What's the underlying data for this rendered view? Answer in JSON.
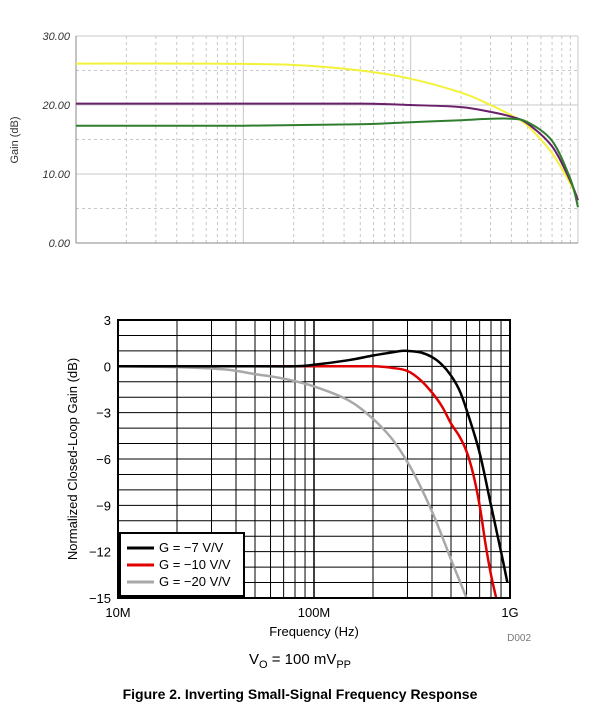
{
  "chart_data": [
    {
      "type": "line",
      "ylabel": "Gain (dB)",
      "xscale": "log",
      "xlim": [
        1000000,
        1000000000
      ],
      "ylim": [
        0,
        30
      ],
      "yticks": [
        "0.00",
        "10.00",
        "20.00",
        "30.00"
      ],
      "grid": true,
      "series": [
        {
          "color": "#f2f23a",
          "points": [
            [
              1000000,
              26
            ],
            [
              5000000,
              26
            ],
            [
              20000000,
              25.8
            ],
            [
              50000000,
              25
            ],
            [
              100000000,
              23.8
            ],
            [
              200000000,
              21.8
            ],
            [
              300000000,
              20
            ],
            [
              400000000,
              18.5
            ],
            [
              500000000,
              17
            ],
            [
              700000000,
              13
            ],
            [
              900000000,
              8.6
            ],
            [
              1000000000,
              6.3
            ]
          ]
        },
        {
          "color": "#6a1f6a",
          "points": [
            [
              1000000,
              20.2
            ],
            [
              10000000,
              20.2
            ],
            [
              50000000,
              20.2
            ],
            [
              100000000,
              20
            ],
            [
              200000000,
              19.7
            ],
            [
              300000000,
              19
            ],
            [
              400000000,
              18.3
            ],
            [
              500000000,
              17.3
            ],
            [
              700000000,
              14
            ],
            [
              900000000,
              9
            ],
            [
              1000000000,
              6.2
            ]
          ]
        },
        {
          "color": "#2f7d2f",
          "points": [
            [
              1000000,
              17
            ],
            [
              10000000,
              17
            ],
            [
              50000000,
              17.2
            ],
            [
              100000000,
              17.5
            ],
            [
              200000000,
              17.8
            ],
            [
              300000000,
              18
            ],
            [
              400000000,
              18
            ],
            [
              500000000,
              17.5
            ],
            [
              700000000,
              14.8
            ],
            [
              900000000,
              9.3
            ],
            [
              1000000000,
              5.2
            ]
          ]
        }
      ]
    },
    {
      "type": "line",
      "xlabel": "Frequency (Hz)",
      "ylabel": "Normalized Closed-Loop Gain (dB)",
      "xscale": "log",
      "xlim": [
        10000000,
        1000000000
      ],
      "ylim": [
        -15,
        3
      ],
      "yticks": [
        "3",
        "0",
        "-3",
        "-6",
        "-9",
        "-12",
        "-15"
      ],
      "xticks": [
        {
          "v": 10000000,
          "label": "10M"
        },
        {
          "v": 100000000,
          "label": "100M"
        },
        {
          "v": 1000000000,
          "label": "1G"
        }
      ],
      "grid": true,
      "legend_position": "bottom-left",
      "series": [
        {
          "name": "G = −7 V/V",
          "color": "#000000",
          "points": [
            [
              10000000,
              0
            ],
            [
              50000000,
              0
            ],
            [
              80000000,
              0
            ],
            [
              100000000,
              0.1
            ],
            [
              150000000,
              0.4
            ],
            [
              200000000,
              0.7
            ],
            [
              250000000,
              0.9
            ],
            [
              280000000,
              1.0
            ],
            [
              300000000,
              1.0
            ],
            [
              350000000,
              0.9
            ],
            [
              400000000,
              0.6
            ],
            [
              450000000,
              0.1
            ],
            [
              500000000,
              -0.6
            ],
            [
              550000000,
              -1.5
            ],
            [
              600000000,
              -2.8
            ],
            [
              700000000,
              -5.6
            ],
            [
              800000000,
              -9
            ],
            [
              900000000,
              -12
            ],
            [
              970000000,
              -14
            ]
          ]
        },
        {
          "name": "G = −10 V/V",
          "color": "#e00000",
          "points": [
            [
              10000000,
              0
            ],
            [
              50000000,
              0
            ],
            [
              100000000,
              0
            ],
            [
              200000000,
              0
            ],
            [
              250000000,
              -0.1
            ],
            [
              300000000,
              -0.3
            ],
            [
              350000000,
              -0.9
            ],
            [
              400000000,
              -1.7
            ],
            [
              450000000,
              -2.6
            ],
            [
              500000000,
              -3.7
            ],
            [
              550000000,
              -4.5
            ],
            [
              600000000,
              -5.5
            ],
            [
              650000000,
              -7
            ],
            [
              700000000,
              -9
            ],
            [
              750000000,
              -11.5
            ],
            [
              800000000,
              -13.5
            ],
            [
              850000000,
              -15
            ]
          ]
        },
        {
          "name": "G = −20 V/V",
          "color": "#a8a8a8",
          "points": [
            [
              10000000,
              0
            ],
            [
              20000000,
              -0.05
            ],
            [
              35000000,
              -0.2
            ],
            [
              50000000,
              -0.5
            ],
            [
              70000000,
              -0.8
            ],
            [
              100000000,
              -1.3
            ],
            [
              150000000,
              -2.2
            ],
            [
              200000000,
              -3.4
            ],
            [
              250000000,
              -4.7
            ],
            [
              300000000,
              -6.2
            ],
            [
              350000000,
              -7.8
            ],
            [
              400000000,
              -9.4
            ],
            [
              450000000,
              -11
            ],
            [
              500000000,
              -12.5
            ],
            [
              550000000,
              -13.8
            ],
            [
              600000000,
              -15
            ]
          ]
        }
      ]
    }
  ],
  "figure": {
    "code": "D002",
    "condition_main": "V",
    "condition_sub1": "O",
    "condition_mid": " = 100 mV",
    "condition_sub2": "PP",
    "caption": "Figure 2. Inverting Small-Signal Frequency Response"
  },
  "colors": {
    "grid1": "#c8c8c8",
    "axis1": "#888888",
    "grid2": "#000000"
  }
}
